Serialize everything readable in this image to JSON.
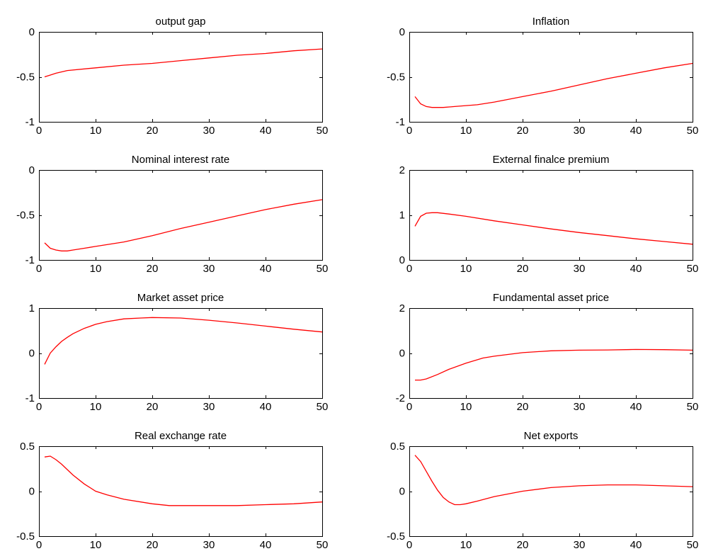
{
  "colors": {
    "line": "#ff0000",
    "axes": "#000000",
    "background": "#ffffff"
  },
  "chart_data": [
    {
      "type": "line",
      "title": "output gap",
      "xlim": [
        0,
        50
      ],
      "ylim": [
        -1,
        0
      ],
      "xticks": [
        0,
        10,
        20,
        30,
        40,
        50
      ],
      "yticks": [
        -1,
        -0.5,
        0
      ],
      "xtick_labels": [
        "0",
        "10",
        "20",
        "30",
        "40",
        "50"
      ],
      "ytick_labels": [
        "-1",
        "-0.5",
        "0"
      ],
      "series": [
        {
          "x": [
            1,
            2,
            3,
            5,
            10,
            15,
            20,
            25,
            30,
            35,
            40,
            45,
            50
          ],
          "y": [
            -0.5,
            -0.48,
            -0.46,
            -0.43,
            -0.4,
            -0.37,
            -0.35,
            -0.32,
            -0.29,
            -0.26,
            -0.24,
            -0.21,
            -0.19
          ]
        }
      ]
    },
    {
      "type": "line",
      "title": "Inflation",
      "xlim": [
        0,
        50
      ],
      "ylim": [
        -1,
        0
      ],
      "xticks": [
        0,
        10,
        20,
        30,
        40,
        50
      ],
      "yticks": [
        -1,
        -0.5,
        0
      ],
      "xtick_labels": [
        "0",
        "10",
        "20",
        "30",
        "40",
        "50"
      ],
      "ytick_labels": [
        "-1",
        "-0.5",
        "0"
      ],
      "series": [
        {
          "x": [
            1,
            2,
            3,
            4,
            5,
            6,
            8,
            10,
            12,
            15,
            20,
            25,
            30,
            35,
            40,
            45,
            50
          ],
          "y": [
            -0.72,
            -0.8,
            -0.83,
            -0.84,
            -0.84,
            -0.84,
            -0.83,
            -0.82,
            -0.81,
            -0.78,
            -0.72,
            -0.66,
            -0.59,
            -0.52,
            -0.46,
            -0.4,
            -0.35
          ]
        }
      ]
    },
    {
      "type": "line",
      "title": "Nominal interest rate",
      "xlim": [
        0,
        50
      ],
      "ylim": [
        -1,
        0
      ],
      "xticks": [
        0,
        10,
        20,
        30,
        40,
        50
      ],
      "yticks": [
        -1,
        -0.5,
        0
      ],
      "xtick_labels": [
        "0",
        "10",
        "20",
        "30",
        "40",
        "50"
      ],
      "ytick_labels": [
        "-1",
        "-0.5",
        "0"
      ],
      "series": [
        {
          "x": [
            1,
            2,
            3,
            4,
            5,
            6,
            8,
            10,
            12,
            15,
            20,
            25,
            30,
            35,
            40,
            45,
            50
          ],
          "y": [
            -0.81,
            -0.87,
            -0.89,
            -0.9,
            -0.9,
            -0.89,
            -0.87,
            -0.85,
            -0.83,
            -0.8,
            -0.73,
            -0.65,
            -0.58,
            -0.51,
            -0.44,
            -0.38,
            -0.33
          ]
        }
      ]
    },
    {
      "type": "line",
      "title": "External finalce premium",
      "xlim": [
        0,
        50
      ],
      "ylim": [
        0,
        2
      ],
      "xticks": [
        0,
        10,
        20,
        30,
        40,
        50
      ],
      "yticks": [
        0,
        1,
        2
      ],
      "xtick_labels": [
        "0",
        "10",
        "20",
        "30",
        "40",
        "50"
      ],
      "ytick_labels": [
        "0",
        "1",
        "2"
      ],
      "series": [
        {
          "x": [
            1,
            2,
            3,
            4,
            5,
            7,
            10,
            15,
            20,
            25,
            30,
            35,
            40,
            45,
            50
          ],
          "y": [
            0.75,
            0.97,
            1.04,
            1.05,
            1.05,
            1.02,
            0.97,
            0.87,
            0.78,
            0.69,
            0.61,
            0.54,
            0.47,
            0.41,
            0.35
          ]
        }
      ]
    },
    {
      "type": "line",
      "title": "Market asset price",
      "xlim": [
        0,
        50
      ],
      "ylim": [
        -1,
        1
      ],
      "xticks": [
        0,
        10,
        20,
        30,
        40,
        50
      ],
      "yticks": [
        -1,
        0,
        1
      ],
      "xtick_labels": [
        "0",
        "10",
        "20",
        "30",
        "40",
        "50"
      ],
      "ytick_labels": [
        "-1",
        "0",
        "1"
      ],
      "series": [
        {
          "x": [
            1,
            2,
            3,
            4,
            5,
            6,
            8,
            10,
            12,
            15,
            18,
            20,
            25,
            30,
            35,
            40,
            45,
            50
          ],
          "y": [
            -0.25,
            0.0,
            0.14,
            0.26,
            0.35,
            0.43,
            0.55,
            0.64,
            0.7,
            0.76,
            0.78,
            0.79,
            0.78,
            0.73,
            0.67,
            0.6,
            0.53,
            0.47
          ]
        }
      ]
    },
    {
      "type": "line",
      "title": "Fundamental asset price",
      "xlim": [
        0,
        50
      ],
      "ylim": [
        -2,
        2
      ],
      "xticks": [
        0,
        10,
        20,
        30,
        40,
        50
      ],
      "yticks": [
        -2,
        0,
        2
      ],
      "xtick_labels": [
        "0",
        "10",
        "20",
        "30",
        "40",
        "50"
      ],
      "ytick_labels": [
        "-2",
        "0",
        "2"
      ],
      "series": [
        {
          "x": [
            1,
            2,
            3,
            5,
            7,
            10,
            13,
            15,
            20,
            25,
            30,
            35,
            40,
            45,
            50
          ],
          "y": [
            -1.2,
            -1.2,
            -1.15,
            -0.95,
            -0.72,
            -0.45,
            -0.22,
            -0.14,
            0.02,
            0.1,
            0.13,
            0.14,
            0.16,
            0.15,
            0.13
          ]
        }
      ]
    },
    {
      "type": "line",
      "title": "Real exchange rate",
      "xlim": [
        0,
        50
      ],
      "ylim": [
        -0.5,
        0.5
      ],
      "xticks": [
        0,
        10,
        20,
        30,
        40,
        50
      ],
      "yticks": [
        -0.5,
        0,
        0.5
      ],
      "xtick_labels": [
        "0",
        "10",
        "20",
        "30",
        "40",
        "50"
      ],
      "ytick_labels": [
        "-0.5",
        "0",
        "0.5"
      ],
      "series": [
        {
          "x": [
            1,
            2,
            3,
            4,
            5,
            6,
            8,
            10,
            12,
            15,
            20,
            23,
            25,
            30,
            35,
            40,
            45,
            50
          ],
          "y": [
            0.38,
            0.39,
            0.35,
            0.3,
            0.24,
            0.18,
            0.08,
            0.0,
            -0.04,
            -0.09,
            -0.14,
            -0.16,
            -0.16,
            -0.16,
            -0.16,
            -0.15,
            -0.14,
            -0.12
          ]
        }
      ]
    },
    {
      "type": "line",
      "title": "Net exports",
      "xlim": [
        0,
        50
      ],
      "ylim": [
        -0.5,
        0.5
      ],
      "xticks": [
        0,
        10,
        20,
        30,
        40,
        50
      ],
      "yticks": [
        -0.5,
        0,
        0.5
      ],
      "xtick_labels": [
        "0",
        "10",
        "20",
        "30",
        "40",
        "50"
      ],
      "ytick_labels": [
        "-0.5",
        "0",
        "0.5"
      ],
      "series": [
        {
          "x": [
            1,
            2,
            3,
            4,
            5,
            6,
            7,
            8,
            9,
            10,
            12,
            15,
            20,
            25,
            30,
            35,
            40,
            45,
            50
          ],
          "y": [
            0.4,
            0.33,
            0.22,
            0.11,
            0.01,
            -0.07,
            -0.12,
            -0.15,
            -0.15,
            -0.14,
            -0.11,
            -0.06,
            0.0,
            0.04,
            0.06,
            0.07,
            0.07,
            0.06,
            0.05
          ]
        }
      ]
    }
  ]
}
